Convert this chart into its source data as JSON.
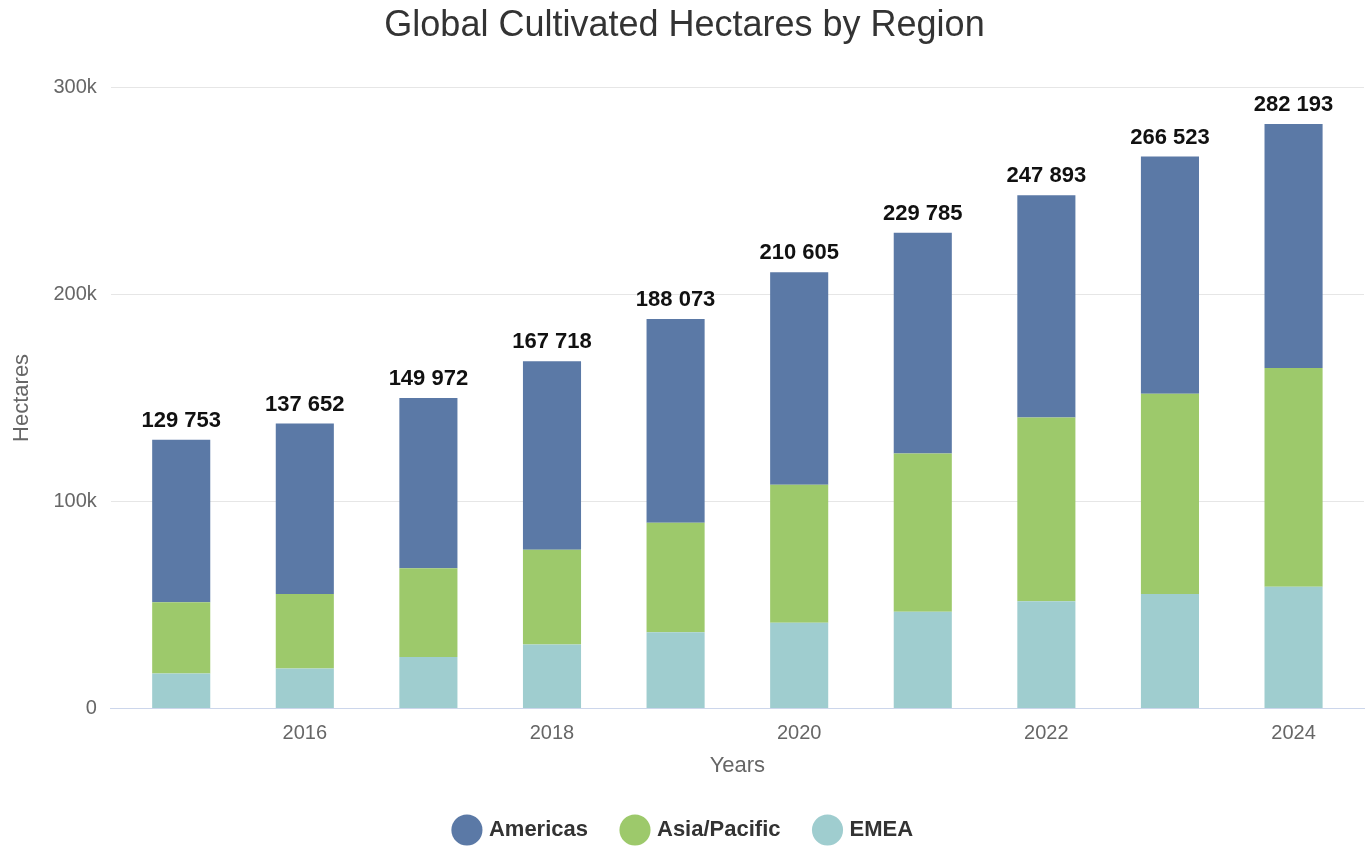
{
  "chart_data": {
    "type": "bar",
    "title": "Global Cultivated Hectares by Region",
    "xlabel": "Years",
    "ylabel": "Hectares",
    "x": [
      2015,
      2016,
      2017,
      2018,
      2019,
      2020,
      2021,
      2022,
      2023,
      2024
    ],
    "series": [
      {
        "name": "EMEA",
        "color": "#9fcdcf",
        "values": [
          16900,
          19400,
          24900,
          30900,
          36900,
          41400,
          46800,
          51800,
          55300,
          58800
        ]
      },
      {
        "name": "Asia/Pacific",
        "color": "#9dc96b",
        "values": [
          34400,
          35900,
          42900,
          45800,
          52800,
          66700,
          76300,
          88700,
          96700,
          105600
        ]
      },
      {
        "name": "Americas",
        "color": "#5b79a6",
        "values": [
          78453,
          82352,
          82172,
          91018,
          98373,
          102505,
          106685,
          107393,
          114523,
          117793
        ]
      }
    ],
    "stacked": true,
    "totals": [
      "129 753",
      "137 652",
      "149 972",
      "167 718",
      "188 073",
      "210 605",
      "229 785",
      "247 893",
      "266 523",
      "282 193"
    ],
    "xlim": [
      2014.43,
      2024.57
    ],
    "xticks": [
      2016,
      2018,
      2020,
      2022,
      2024
    ],
    "ylim": [
      0,
      300000
    ],
    "yticks": [
      {
        "value": 0,
        "label": "0"
      },
      {
        "value": 100000,
        "label": "100k"
      },
      {
        "value": 200000,
        "label": "200k"
      },
      {
        "value": 300000,
        "label": "300k"
      }
    ],
    "grid": "y",
    "legend": "bottom",
    "marker": "circle"
  }
}
